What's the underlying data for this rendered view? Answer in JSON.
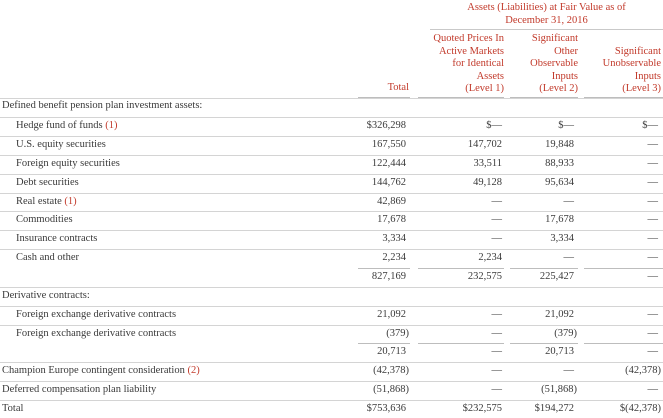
{
  "header": {
    "group_line1": "Assets (Liabilities) at Fair Value as of",
    "group_line2": "December 31, 2016",
    "col_total": "Total",
    "col_level1": [
      "Quoted Prices In",
      "Active Markets",
      "for Identical",
      "Assets",
      "(Level 1)"
    ],
    "col_level2": [
      "Significant",
      "Other",
      "Observable",
      "Inputs",
      "(Level 2)"
    ],
    "col_level3": [
      "Significant",
      "Unobservable",
      "Inputs",
      "(Level 3)"
    ]
  },
  "sections": {
    "pension": "Defined benefit pension plan investment assets:",
    "derivative": "Derivative contracts:"
  },
  "rows": {
    "hedge": {
      "label": "Hedge fund of funds",
      "note": "(1)",
      "total": "$326,298",
      "l1": "$—",
      "l2": "$—",
      "l3": "$—"
    },
    "us_equity": {
      "label": "U.S. equity securities",
      "total": "167,550",
      "l1": "147,702",
      "l2": "19,848",
      "l3": "—"
    },
    "foreign_equity": {
      "label": "Foreign equity securities",
      "total": "122,444",
      "l1": "33,511",
      "l2": "88,933",
      "l3": "—"
    },
    "debt": {
      "label": "Debt securities",
      "total": "144,762",
      "l1": "49,128",
      "l2": "95,634",
      "l3": "—"
    },
    "real_estate": {
      "label": "Real estate",
      "note": "(1)",
      "total": "42,869",
      "l1": "—",
      "l2": "—",
      "l3": "—"
    },
    "commodities": {
      "label": "Commodities",
      "total": "17,678",
      "l1": "—",
      "l2": "17,678",
      "l3": "—"
    },
    "insurance": {
      "label": "Insurance contracts",
      "total": "3,334",
      "l1": "—",
      "l2": "3,334",
      "l3": "—"
    },
    "cash": {
      "label": "Cash and other",
      "total": "2,234",
      "l1": "2,234",
      "l2": "—",
      "l3": "—"
    },
    "pension_subtotal": {
      "total": "827,169",
      "l1": "232,575",
      "l2": "225,427",
      "l3": "—"
    },
    "fx1": {
      "label": "Foreign exchange derivative contracts",
      "total": "21,092",
      "l1": "—",
      "l2": "21,092",
      "l3": "—"
    },
    "fx2": {
      "label": "Foreign exchange derivative contracts",
      "total": "(379)",
      "l1": "—",
      "l2": "(379)",
      "l3": "—"
    },
    "deriv_subtotal": {
      "total": "20,713",
      "l1": "—",
      "l2": "20,713",
      "l3": "—"
    },
    "champion": {
      "label": "Champion Europe contingent consideration",
      "note": "(2)",
      "total": "(42,378)",
      "l1": "—",
      "l2": "—",
      "l3": "(42,378)"
    },
    "deferred": {
      "label": "Deferred compensation plan liability",
      "total": "(51,868)",
      "l1": "—",
      "l2": "(51,868)",
      "l3": "—"
    },
    "grand_total": {
      "label": "Total",
      "total": "$753,636",
      "l1": "$232,575",
      "l2": "$194,272",
      "l3": "$(42,378)"
    }
  }
}
